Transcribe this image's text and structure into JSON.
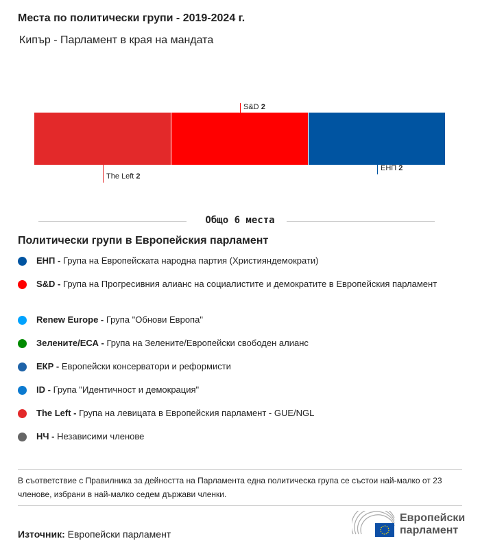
{
  "header": {
    "title": "Места по политически групи - 2019-2024 г.",
    "subtitle": "Кипър - Парламент в края на мандата"
  },
  "chart_data": {
    "type": "bar",
    "orientation": "stacked-horizontal",
    "categories": [
      "The Left",
      "S&D",
      "ЕНП"
    ],
    "values": [
      2,
      2,
      2
    ],
    "colors": [
      "#e3292a",
      "#ff0000",
      "#0054a1"
    ],
    "label_positions": [
      "below",
      "above",
      "below"
    ],
    "total_label": "Общо 6 места"
  },
  "legend": {
    "title": "Политически групи в Европейския парламент",
    "items": [
      {
        "abbr": "ЕНП -",
        "name": "Група на Европейската народна партия (Християндемократи)",
        "color": "#0054a1"
      },
      {
        "abbr": "S&D -",
        "name": "Група на Прогресивния алианс на социалистите и демократите в Европейския парламент",
        "color": "#ff0000"
      },
      {
        "abbr": "Renew Europe -",
        "name": "Група \"Обнови Европа\"",
        "color": "#00a3ff"
      },
      {
        "abbr": "Зелените/ЕСА -",
        "name": "Група на Зелените/Европейски свободен алианс",
        "color": "#008a00"
      },
      {
        "abbr": "ЕКР -",
        "name": "Европейски консерватори и реформисти",
        "color": "#1e63a8"
      },
      {
        "abbr": "ID -",
        "name": "Група \"Идентичност и демокрация\"",
        "color": "#0b7ad0"
      },
      {
        "abbr": "The Left -",
        "name": "Група на левицата в Европейския парламент - GUE/NGL",
        "color": "#e3292a"
      },
      {
        "abbr": "НЧ -",
        "name": "Независими членове",
        "color": "#666666"
      }
    ]
  },
  "footer": {
    "note": "В съответствие с Правилника за дейността на Парламента една политическа група се състои най-малко от 23 членове, избрани в най-малко седем държави членки.",
    "source_label": "Източник:",
    "source_value": "Европейски парламент",
    "logo_line1": "Европейски",
    "logo_line2": "парламент"
  }
}
